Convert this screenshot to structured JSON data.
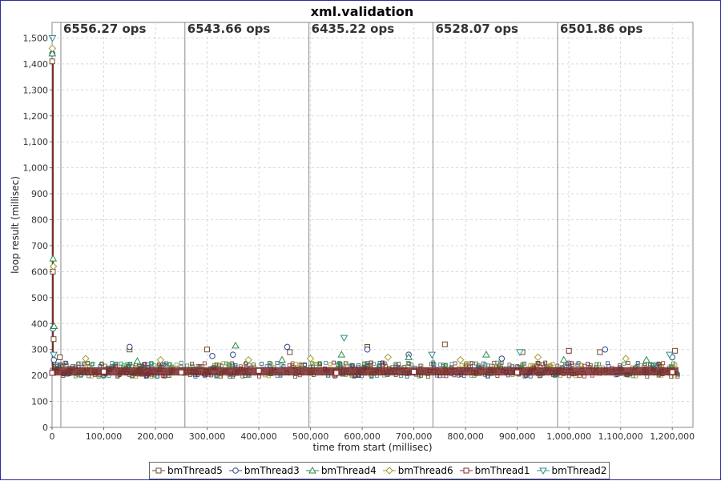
{
  "chart_data": {
    "type": "scatter",
    "title": "xml.validation",
    "xlabel": "time from start (millisec)",
    "ylabel": "loop result (millisec)",
    "xlim": [
      0,
      1240000
    ],
    "ylim": [
      0,
      1560
    ],
    "x_ticks": [
      0,
      100000,
      200000,
      300000,
      400000,
      500000,
      600000,
      700000,
      800000,
      900000,
      1000000,
      1100000,
      1200000
    ],
    "x_tick_labels": [
      "0",
      "100,000",
      "200,000",
      "300,000",
      "400,000",
      "500,000",
      "600,000",
      "700,000",
      "800,000",
      "900,000",
      "1,000,000",
      "1,100,000",
      "1,200,000"
    ],
    "y_ticks": [
      0,
      100,
      200,
      300,
      400,
      500,
      600,
      700,
      800,
      900,
      1000,
      1100,
      1200,
      1300,
      1400,
      1500
    ],
    "y_tick_labels": [
      "0",
      "100",
      "200",
      "300",
      "400",
      "500",
      "600",
      "700",
      "800",
      "900",
      "1,000",
      "1,100",
      "1,200",
      "1,300",
      "1,400",
      "1,500"
    ],
    "grid": true,
    "legend_position": "bottom",
    "markers": [
      {
        "x": 17000,
        "label": "6556.27 ops"
      },
      {
        "x": 257000,
        "label": "6543.66 ops"
      },
      {
        "x": 497000,
        "label": "6435.22 ops"
      },
      {
        "x": 737000,
        "label": "6528.07 ops"
      },
      {
        "x": 978000,
        "label": "6501.86 ops"
      }
    ],
    "series": [
      {
        "name": "bmThread5",
        "marker": "square",
        "color": "#6b4a2e",
        "x": [
          300,
          1500,
          3000,
          15000,
          150000,
          300000,
          460000,
          610000,
          760000,
          910000,
          1060000,
          1205000
        ],
        "y": [
          1410,
          600,
          340,
          270,
          300,
          300,
          290,
          310,
          320,
          290,
          290,
          295
        ]
      },
      {
        "name": "bmThread3",
        "marker": "circle",
        "color": "#2e4a8c",
        "x": [
          400,
          1800,
          3500,
          150000,
          310000,
          350000,
          455000,
          610000,
          690000,
          870000,
          1070000,
          1200000
        ],
        "y": [
          1440,
          380,
          260,
          310,
          275,
          280,
          310,
          300,
          280,
          265,
          300,
          270
        ]
      },
      {
        "name": "bmThread4",
        "marker": "triangle-up",
        "color": "#2e8c4a",
        "x": [
          500,
          2000,
          4000,
          165000,
          355000,
          445000,
          560000,
          690000,
          840000,
          990000,
          1150000
        ],
        "y": [
          1440,
          650,
          390,
          255,
          315,
          260,
          280,
          270,
          280,
          260,
          260
        ]
      },
      {
        "name": "bmThread6",
        "marker": "diamond",
        "color": "#9a9a2e",
        "x": [
          600,
          2500,
          65000,
          210000,
          380000,
          500000,
          650000,
          790000,
          940000,
          1110000
        ],
        "y": [
          1460,
          620,
          265,
          260,
          260,
          265,
          270,
          260,
          270,
          265
        ]
      },
      {
        "name": "bmThread1",
        "marker": "square-line",
        "color": "#7a2e2e",
        "x": [
          0,
          100000,
          250000,
          400000,
          550000,
          700000,
          900000,
          1000000,
          1200000
        ],
        "y": [
          210,
          215,
          212,
          218,
          210,
          214,
          212,
          295,
          213
        ]
      },
      {
        "name": "bmThread2",
        "marker": "triangle-down",
        "color": "#2e8c8c",
        "x": [
          700,
          3200,
          565000,
          735000,
          905000,
          1195000
        ],
        "y": [
          1500,
          280,
          345,
          280,
          290,
          280
        ]
      }
    ]
  }
}
